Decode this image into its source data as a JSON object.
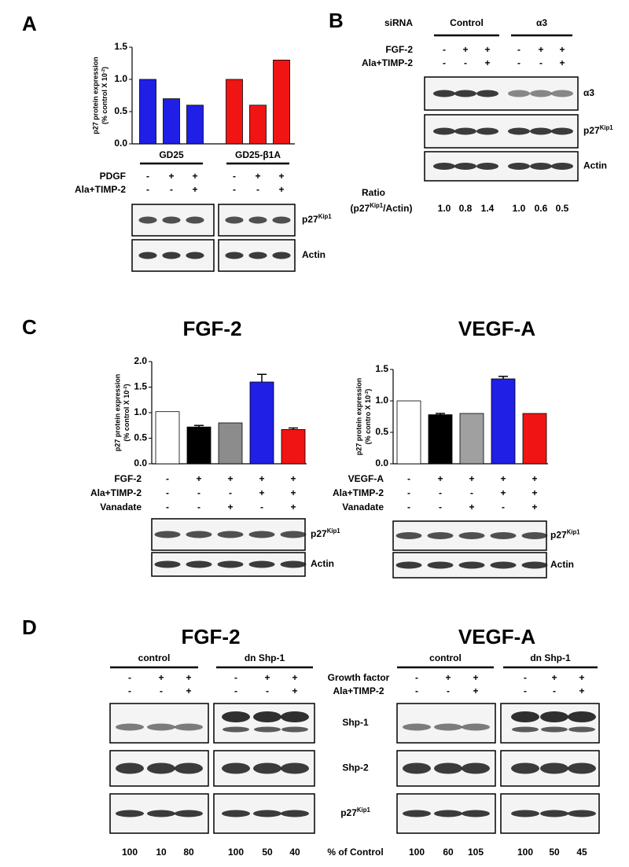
{
  "panel_labels": [
    "A",
    "B",
    "C",
    "D"
  ],
  "chart_data": [
    {
      "type": "bar",
      "ylabel": "p27 protein expression",
      "ylabel2": [
        "(% control X 10",
        "-2",
        ")"
      ],
      "categories": [
        null,
        null,
        null,
        null,
        null,
        null
      ],
      "values": [
        1.0,
        0.7,
        0.6,
        1.0,
        0.6,
        1.3
      ],
      "colors": [
        "#1f1fe6",
        "#1f1fe6",
        "#1f1fe6",
        "#f01414",
        "#f01414",
        "#f01414"
      ],
      "ylim": [
        0,
        1.5
      ],
      "yticks": [
        {
          "value": 0,
          "label": "0.0"
        },
        0.5,
        {
          "value": 1,
          "label": "1.0"
        },
        1.5
      ],
      "group_labels": [
        "GD25",
        "GD25-β1A"
      ],
      "treatments": [
        {
          "label": "PDGF",
          "signs": [
            "-",
            "+",
            "+",
            "-",
            "+",
            "+"
          ]
        },
        {
          "label": "Ala+TIMP-2",
          "signs": [
            "-",
            "-",
            "+",
            "-",
            "-",
            "+"
          ]
        }
      ],
      "blots": [
        {
          "label": "p27",
          "sup": "Kip1"
        },
        {
          "label": "Actin"
        }
      ]
    },
    {
      "type": "bar",
      "title": "FGF-2",
      "ylabel": "p27 protein expression",
      "ylabel2": [
        "(% control X 10",
        "-2",
        ")"
      ],
      "categories": [
        null,
        null,
        null,
        null,
        null
      ],
      "values": [
        1.02,
        0.72,
        0.8,
        1.6,
        0.67
      ],
      "errors": [
        null,
        0.03,
        null,
        0.15,
        0.03
      ],
      "colors": [
        "#ffffff",
        "#000000",
        "#8c8c8c",
        "#1f1fe6",
        "#f01414"
      ],
      "ylim": [
        0,
        2
      ],
      "yticks": [
        {
          "value": 0,
          "label": "0.0"
        },
        0.5,
        {
          "value": 1,
          "label": "1.0"
        },
        1.5,
        {
          "value": 2,
          "label": "2.0"
        }
      ],
      "treatments": [
        {
          "label": "FGF-2",
          "signs": [
            "-",
            "+",
            "+",
            "+",
            "+"
          ]
        },
        {
          "label": "Ala+TIMP-2",
          "signs": [
            "-",
            "-",
            "-",
            "+",
            "+"
          ]
        },
        {
          "label": "Vanadate",
          "signs": [
            "-",
            "-",
            "+",
            "-",
            "+"
          ]
        }
      ],
      "blots": [
        {
          "label": "p27",
          "sup": "Kip1"
        },
        {
          "label": "Actin"
        }
      ]
    },
    {
      "type": "bar",
      "title": "VEGF-A",
      "ylabel": "p27 protein expression",
      "ylabel2": [
        "(% contro X 10",
        "-2",
        ")"
      ],
      "categories": [
        null,
        null,
        null,
        null,
        null
      ],
      "values": [
        1.0,
        0.78,
        0.8,
        1.35,
        0.8
      ],
      "errors": [
        null,
        0.02,
        null,
        0.04,
        null
      ],
      "colors": [
        "#ffffff",
        "#000000",
        "#a0a0a0",
        "#1f1fe6",
        "#f01414"
      ],
      "ylim": [
        0,
        1.5
      ],
      "yticks": [
        {
          "value": 0,
          "label": "0.0"
        },
        0.5,
        {
          "value": 1,
          "label": "1.0"
        },
        1.5
      ],
      "treatments": [
        {
          "label": "VEGF-A",
          "signs": [
            "-",
            "+",
            "+",
            "+",
            "+"
          ]
        },
        {
          "label": "Ala+TIMP-2",
          "signs": [
            "-",
            "-",
            "-",
            "+",
            "+"
          ]
        },
        {
          "label": "Vanadate",
          "signs": [
            "-",
            "-",
            "+",
            "-",
            "+"
          ]
        }
      ],
      "blots": [
        {
          "label": "p27",
          "sup": "Kip1"
        },
        {
          "label": "Actin"
        }
      ]
    }
  ],
  "panel_b": {
    "header": {
      "label": "siRNA",
      "groups": [
        "Control",
        "α3"
      ]
    },
    "treatments": [
      {
        "label": "FGF-2",
        "signs": [
          "-",
          "+",
          "+",
          "-",
          "+",
          "+"
        ]
      },
      {
        "label": "Ala+TIMP-2",
        "signs": [
          "-",
          "-",
          "+",
          "-",
          "-",
          "+"
        ]
      }
    ],
    "blots": [
      {
        "label": "α3"
      },
      {
        "label": "p27",
        "sup": "Kip1"
      },
      {
        "label": "Actin"
      }
    ],
    "ratio": {
      "label": "Ratio",
      "sublabel": [
        "(p27",
        "Kip1",
        "/Actin)"
      ],
      "values": [
        "1.0",
        "0.8",
        "1.4",
        "1.0",
        "0.6",
        "0.5"
      ]
    }
  },
  "panel_d": {
    "titles": [
      "FGF-2",
      "VEGF-A"
    ],
    "groups": [
      "control",
      "dn Shp-1",
      "control",
      "dn Shp-1"
    ],
    "treatments": [
      {
        "label": "Growth factor",
        "signs": [
          "-",
          "+",
          "+",
          "-",
          "+",
          "+",
          "-",
          "+",
          "+",
          "-",
          "+",
          "+"
        ]
      },
      {
        "label": "Ala+TIMP-2",
        "signs": [
          "-",
          "-",
          "+",
          "-",
          "-",
          "+",
          "-",
          "-",
          "+",
          "-",
          "-",
          "+"
        ]
      }
    ],
    "blots": [
      {
        "label": "Shp-1"
      },
      {
        "label": "Shp-2"
      },
      {
        "label": "p27",
        "sup": "Kip1"
      }
    ],
    "percent": {
      "label": "% of Control",
      "values": [
        "100",
        "10",
        "80",
        "100",
        "50",
        "40",
        "100",
        "60",
        "105",
        "100",
        "50",
        "45"
      ]
    }
  }
}
